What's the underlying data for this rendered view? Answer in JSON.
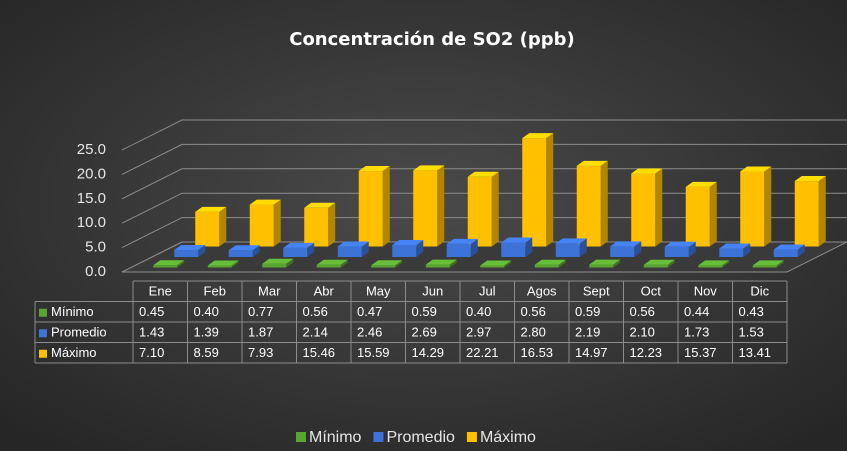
{
  "chart_data": {
    "type": "bar",
    "title": "Concentración de SO2 (ppb)",
    "categories": [
      "Ene",
      "Feb",
      "Mar",
      "Abr",
      "May",
      "Jun",
      "Jul",
      "Agos",
      "Sept",
      "Oct",
      "Nov",
      "Dic"
    ],
    "series": [
      {
        "name": "Mínimo",
        "color": "#5aa532",
        "values": [
          0.45,
          0.4,
          0.77,
          0.56,
          0.47,
          0.59,
          0.4,
          0.56,
          0.59,
          0.56,
          0.44,
          0.43
        ],
        "value_labels": [
          "0.45",
          "0.40",
          "0.77",
          "0.56",
          "0.47",
          "0.59",
          "0.40",
          "0.56",
          "0.59",
          "0.56",
          "0.44",
          "0.43"
        ]
      },
      {
        "name": "Promedio",
        "color": "#3d72d6",
        "values": [
          1.43,
          1.39,
          1.87,
          2.14,
          2.46,
          2.69,
          2.97,
          2.8,
          2.19,
          2.1,
          1.73,
          1.53
        ],
        "value_labels": [
          "1.43",
          "1.39",
          "1.87",
          "2.14",
          "2.46",
          "2.69",
          "2.97",
          "2.80",
          "2.19",
          "2.10",
          "1.73",
          "1.53"
        ]
      },
      {
        "name": "Máximo",
        "color": "#ffc000",
        "values": [
          7.1,
          8.59,
          7.93,
          15.46,
          15.59,
          14.29,
          22.21,
          16.53,
          14.97,
          12.23,
          15.37,
          13.41
        ],
        "value_labels": [
          "7.10",
          "8.59",
          "7.93",
          "15.46",
          "15.59",
          "14.29",
          "22.21",
          "16.53",
          "14.97",
          "12.23",
          "15.37",
          "13.41"
        ]
      }
    ],
    "ylim": [
      0,
      25
    ],
    "yticks": [
      {
        "value": 0,
        "label": "0.0"
      },
      {
        "value": 5,
        "label": "5.0"
      },
      {
        "value": 10,
        "label": "10.0"
      },
      {
        "value": 15,
        "label": "15.0"
      },
      {
        "value": 20,
        "label": "20.0"
      },
      {
        "value": 25,
        "label": "25.0"
      }
    ],
    "grid": true,
    "legend": "bottom"
  }
}
